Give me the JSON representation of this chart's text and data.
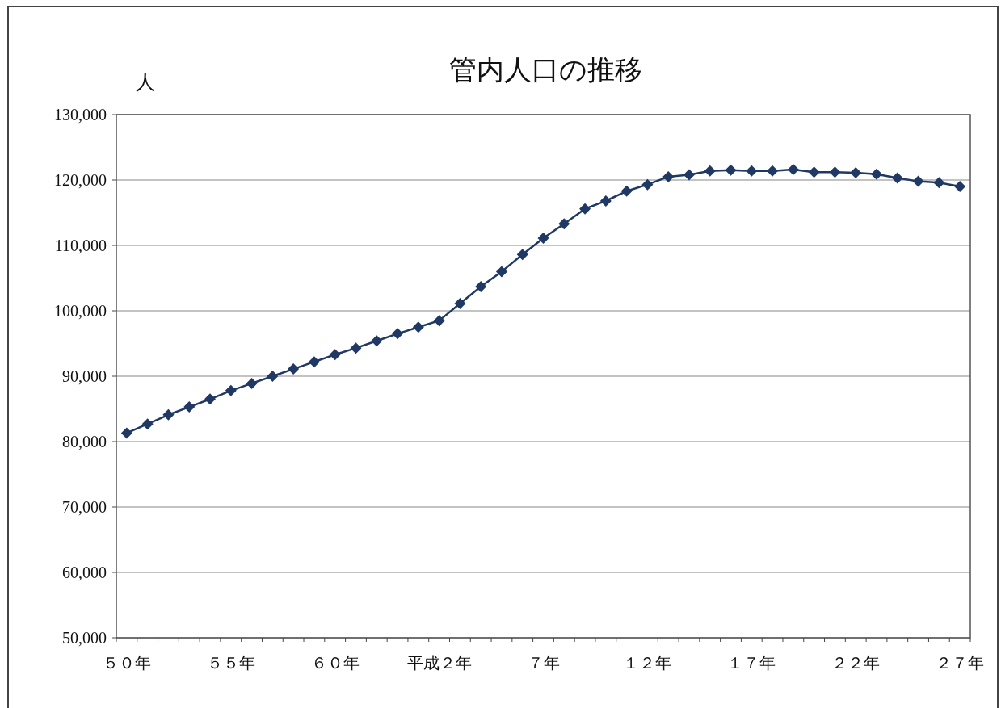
{
  "chart_data": {
    "type": "line",
    "title": "管内人口の推移",
    "ylabel": "人",
    "categories": [
      "５０年",
      null,
      null,
      null,
      null,
      "５５年",
      null,
      null,
      null,
      null,
      "６０年",
      null,
      null,
      null,
      null,
      "平成２年",
      null,
      null,
      null,
      null,
      "７年",
      null,
      null,
      null,
      null,
      "１２年",
      null,
      null,
      null,
      null,
      "１７年",
      null,
      null,
      null,
      null,
      "２２年",
      null,
      null,
      null,
      null,
      "２７年"
    ],
    "series": [
      {
        "color": "#1f3864",
        "values": [
          81300,
          82700,
          84100,
          85300,
          86500,
          87800,
          88900,
          90000,
          91100,
          92200,
          93300,
          94300,
          95400,
          96500,
          97500,
          98500,
          101100,
          103700,
          106000,
          108600,
          111100,
          113300,
          115600,
          116800,
          118300,
          119300,
          120500,
          120800,
          121400,
          121500,
          121400,
          121400,
          121600,
          121200,
          121200,
          121100,
          120900,
          120300,
          119800,
          119600,
          119000
        ]
      }
    ],
    "ylim": [
      50000,
      130000
    ],
    "yticks": [
      {
        "value": 50000,
        "label": "50,000"
      },
      {
        "value": 60000,
        "label": "60,000"
      },
      {
        "value": 70000,
        "label": "70,000"
      },
      {
        "value": 80000,
        "label": "80,000"
      },
      {
        "value": 90000,
        "label": "90,000"
      },
      {
        "value": 100000,
        "label": "100,000"
      },
      {
        "value": 110000,
        "label": "110,000"
      },
      {
        "value": 120000,
        "label": "120,000"
      },
      {
        "value": 130000,
        "label": "130,000"
      }
    ],
    "grid": "y",
    "marker": "diamond",
    "line_style": "solid"
  }
}
